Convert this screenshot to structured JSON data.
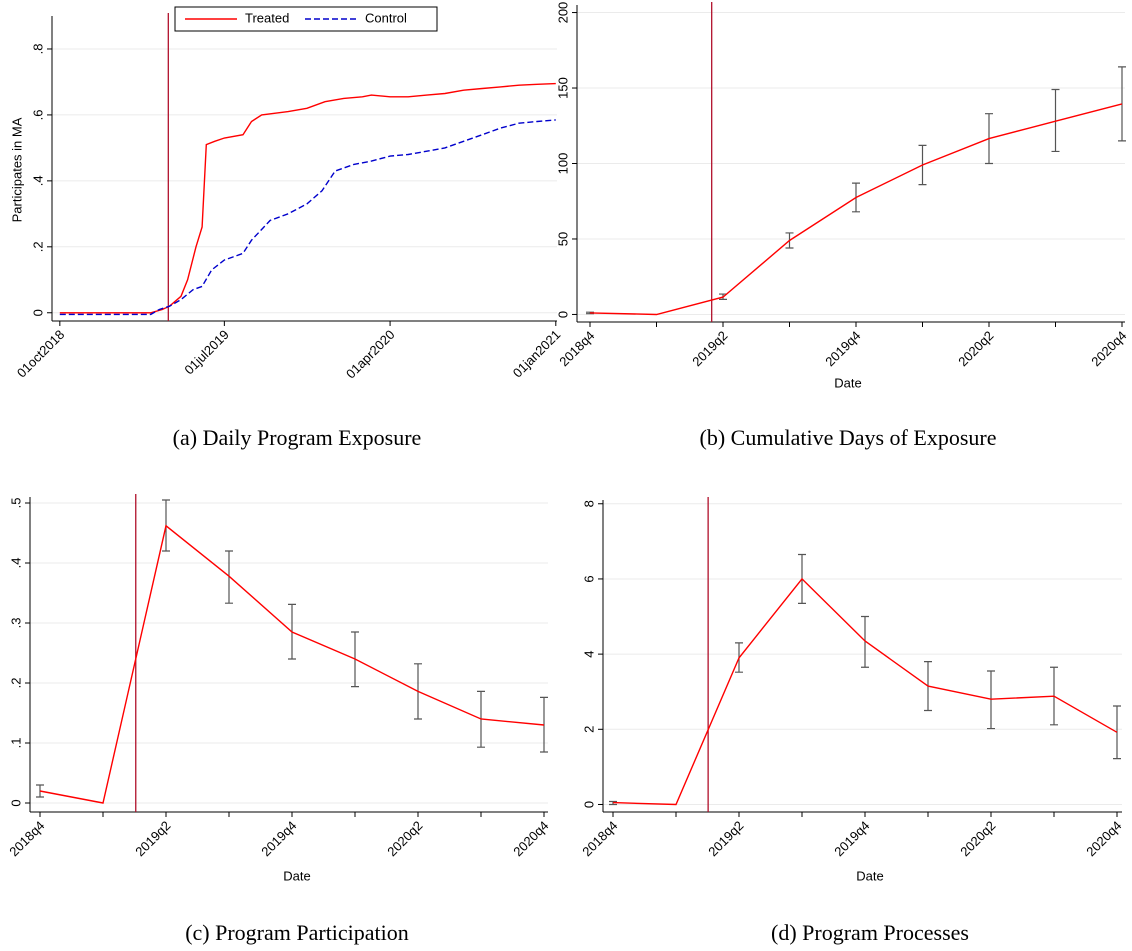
{
  "chart_data": [
    {
      "type": "line",
      "ylabel": "Participates in MA",
      "caption": "(a) Daily Program Exposure",
      "xlim": [
        "2018-09-18",
        "2021-01-03"
      ],
      "ylim": [
        -0.025,
        0.9
      ],
      "xticks": [
        {
          "value": "2018-10-01",
          "label": "01oct2018"
        },
        {
          "value": "2019-07-01",
          "label": "01jul2019"
        },
        {
          "value": "2020-04-01",
          "label": "01apr2020"
        },
        {
          "value": "2021-01-01",
          "label": "01jan2021"
        }
      ],
      "yticks": [
        0,
        {
          "value": 0.2,
          "label": ".2"
        },
        {
          "value": 0.4,
          "label": ".4"
        },
        {
          "value": 0.6,
          "label": ".6"
        },
        {
          "value": 0.8,
          "label": ".8"
        }
      ],
      "grid": true,
      "event_line": "2019-03-30",
      "event_color": "#b0102a",
      "series": [
        {
          "name": "Treated",
          "color": "#ff0000",
          "dash": false,
          "x": [
            "2018-10-01",
            "2019-03-01",
            "2019-03-20",
            "2019-04-01",
            "2019-04-20",
            "2019-05-01",
            "2019-05-15",
            "2019-05-25",
            "2019-06-01",
            "2019-06-15",
            "2019-07-01",
            "2019-08-01",
            "2019-08-15",
            "2019-09-01",
            "2019-10-15",
            "2019-11-15",
            "2019-12-15",
            "2020-01-15",
            "2020-02-15",
            "2020-03-01",
            "2020-04-01",
            "2020-05-01",
            "2020-06-01",
            "2020-07-01",
            "2020-08-01",
            "2020-09-01",
            "2020-10-01",
            "2020-11-01",
            "2020-12-01",
            "2021-01-01"
          ],
          "values": [
            0,
            0,
            0.01,
            0.02,
            0.05,
            0.1,
            0.2,
            0.26,
            0.51,
            0.52,
            0.53,
            0.54,
            0.58,
            0.6,
            0.61,
            0.62,
            0.64,
            0.65,
            0.655,
            0.66,
            0.655,
            0.655,
            0.66,
            0.665,
            0.675,
            0.68,
            0.685,
            0.69,
            0.693,
            0.695
          ]
        },
        {
          "name": "Control",
          "color": "#0000cc",
          "dash": true,
          "x": [
            "2018-10-01",
            "2019-03-01",
            "2019-03-15",
            "2019-04-01",
            "2019-04-20",
            "2019-05-10",
            "2019-05-25",
            "2019-06-10",
            "2019-07-01",
            "2019-08-01",
            "2019-08-15",
            "2019-09-15",
            "2019-10-15",
            "2019-11-15",
            "2019-12-10",
            "2020-01-01",
            "2020-02-01",
            "2020-03-01",
            "2020-04-01",
            "2020-05-01",
            "2020-06-01",
            "2020-07-01",
            "2020-08-01",
            "2020-09-01",
            "2020-10-01",
            "2020-11-01",
            "2020-12-01",
            "2021-01-01"
          ],
          "values": [
            -0.005,
            -0.005,
            0.01,
            0.02,
            0.04,
            0.07,
            0.08,
            0.13,
            0.16,
            0.18,
            0.22,
            0.28,
            0.3,
            0.33,
            0.37,
            0.43,
            0.45,
            0.46,
            0.475,
            0.48,
            0.49,
            0.5,
            0.52,
            0.54,
            0.56,
            0.575,
            0.58,
            0.585
          ]
        }
      ]
    },
    {
      "type": "errorline",
      "xlabel": "Date",
      "caption": "(b) Cumulative Days of Exposure",
      "categories": [
        "2018q4",
        null,
        "2019q2",
        null,
        "2019q4",
        null,
        "2020q2",
        null,
        "2020q4"
      ],
      "values": [
        1,
        0,
        11.5,
        49,
        77.5,
        99,
        116.5,
        128,
        139.5
      ],
      "lower": [
        0.5,
        null,
        10,
        44,
        68,
        86,
        100,
        108,
        115
      ],
      "upper": [
        1.5,
        null,
        13.5,
        54,
        87,
        112,
        133,
        149,
        164
      ],
      "ylim": [
        -5,
        205
      ],
      "yticks": [
        0,
        50,
        100,
        150,
        200
      ],
      "grid": true,
      "color": "#ff0000",
      "error_color": "#555555",
      "event_line": 1.83,
      "event_color": "#b0102a"
    },
    {
      "type": "errorline",
      "xlabel": "Date",
      "caption": "(c) Program Participation",
      "categories": [
        "2018q4",
        null,
        "2019q2",
        null,
        "2019q4",
        null,
        "2020q2",
        null,
        "2020q4"
      ],
      "values": [
        0.02,
        0,
        0.462,
        0.378,
        0.285,
        0.24,
        0.186,
        0.14,
        0.13
      ],
      "lower": [
        0.01,
        null,
        0.42,
        0.333,
        0.24,
        0.194,
        0.14,
        0.093,
        0.085
      ],
      "upper": [
        0.03,
        null,
        0.505,
        0.42,
        0.331,
        0.285,
        0.232,
        0.186,
        0.176
      ],
      "ylim": [
        -0.015,
        0.51
      ],
      "yticks": [
        0,
        {
          "value": 0.1,
          "label": ".1"
        },
        {
          "value": 0.2,
          "label": ".2"
        },
        {
          "value": 0.3,
          "label": ".3"
        },
        {
          "value": 0.4,
          "label": ".4"
        },
        {
          "value": 0.5,
          "label": ".5"
        }
      ],
      "grid": true,
      "color": "#ff0000",
      "error_color": "#555555",
      "event_line": 1.52,
      "event_color": "#b0102a"
    },
    {
      "type": "errorline",
      "xlabel": "Date",
      "caption": "(d) Program Processes",
      "categories": [
        "2018q4",
        null,
        "2019q2",
        null,
        "2019q4",
        null,
        "2020q2",
        null,
        "2020q4"
      ],
      "values": [
        0.05,
        0,
        3.9,
        6.0,
        4.35,
        3.15,
        2.8,
        2.88,
        1.92
      ],
      "lower": [
        0,
        null,
        3.52,
        5.35,
        3.65,
        2.5,
        2.02,
        2.12,
        1.22
      ],
      "upper": [
        0.08,
        null,
        4.3,
        6.65,
        5.0,
        3.8,
        3.55,
        3.65,
        2.62
      ],
      "ylim": [
        -0.2,
        8.1
      ],
      "yticks": [
        0,
        2,
        4,
        6,
        8
      ],
      "grid": true,
      "color": "#ff0000",
      "error_color": "#555555",
      "event_line": 1.51,
      "event_color": "#b0102a"
    }
  ]
}
